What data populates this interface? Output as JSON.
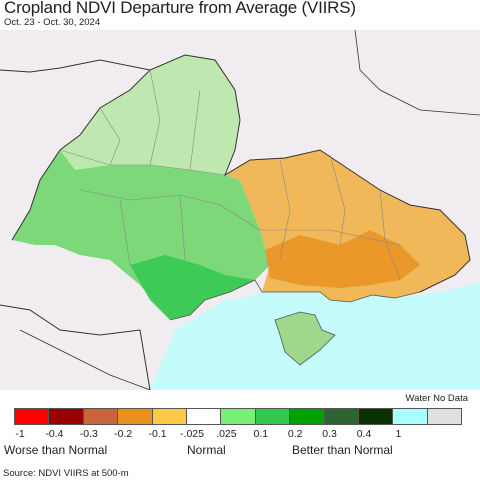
{
  "header": {
    "title": "Cropland NDVI Departure from Average (VIIRS)",
    "date_range": "Oct. 23 - Oct. 30, 2024"
  },
  "legend": {
    "no_data_label": "Water No Data",
    "classes": [
      {
        "color": "#ff0000"
      },
      {
        "color": "#990000"
      },
      {
        "color": "#c8643c"
      },
      {
        "color": "#e8901e"
      },
      {
        "color": "#ffc846"
      },
      {
        "color": "#ffffff"
      },
      {
        "color": "#78f078"
      },
      {
        "color": "#32c850"
      },
      {
        "color": "#00a000"
      },
      {
        "color": "#2d6432"
      },
      {
        "color": "#0a3200"
      },
      {
        "color": "#aaffff"
      },
      {
        "color": "#e0e0e0"
      }
    ],
    "ticks": [
      "-1",
      "-0.4",
      "-0.3",
      "-0.2",
      "-0.1",
      "-.025",
      ".025",
      "0.1",
      "0.2",
      "0.3",
      "0.4",
      "1"
    ],
    "categories": {
      "worse": "Worse than Normal",
      "normal": "Normal",
      "better": "Better than Normal"
    }
  },
  "source": "Source: NDVI VIIRS at 500-m",
  "map_colors": {
    "background": "#f0ecf0",
    "sea": "#c4fcfc",
    "border": "#333333"
  }
}
